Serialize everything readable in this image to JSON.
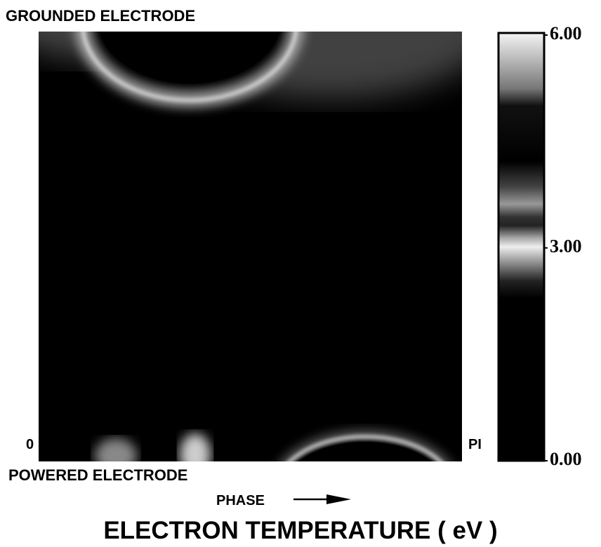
{
  "chart_data": {
    "type": "heatmap",
    "title": "ELECTRON TEMPERATURE ( eV )",
    "top_label": "GROUNDED ELECTRODE",
    "bottom_label": "POWERED ELECTRODE",
    "xlabel": "PHASE",
    "x_start_label": "0",
    "x_end_label": "PI",
    "clim": [
      0,
      6
    ],
    "cticks": [
      {
        "value": 0,
        "label": "0.00"
      },
      {
        "value": 3,
        "label": "3.00"
      },
      {
        "value": 6,
        "label": "6.00"
      }
    ]
  }
}
